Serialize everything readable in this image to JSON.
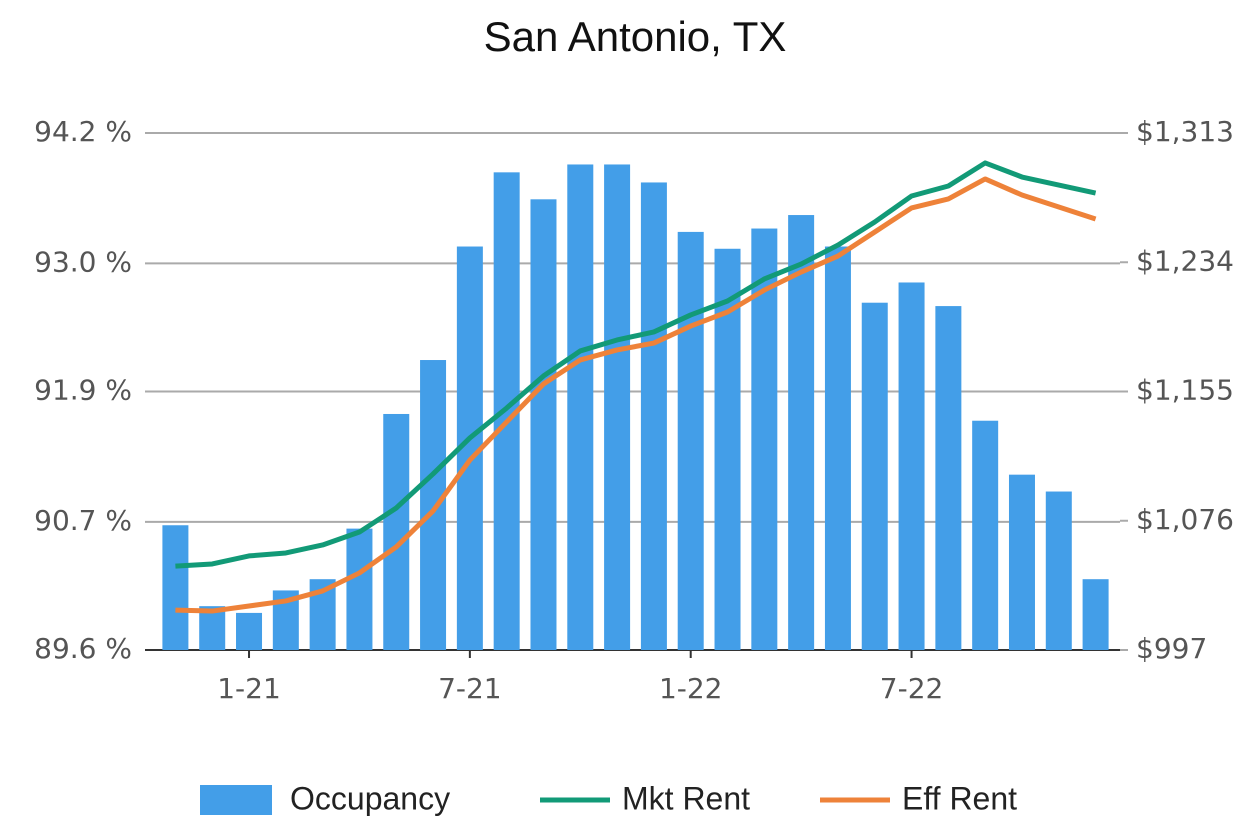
{
  "chart_data": {
    "type": "bar-line",
    "title": "San Antonio, TX",
    "categories": [
      null,
      null,
      "1-21",
      null,
      null,
      null,
      null,
      null,
      "7-21",
      null,
      null,
      null,
      null,
      null,
      "1-22",
      null,
      null,
      null,
      null,
      null,
      "7-22",
      null,
      null,
      null,
      null,
      null
    ],
    "series": [
      {
        "name": "Occupancy",
        "type": "bar",
        "color": "#439ee8",
        "axis": "y",
        "values": [
          90.71,
          89.99,
          89.93,
          90.13,
          90.23,
          90.68,
          91.7,
          92.18,
          93.19,
          93.85,
          93.61,
          93.92,
          93.92,
          93.76,
          93.32,
          93.17,
          93.35,
          93.47,
          93.19,
          92.69,
          92.87,
          92.66,
          91.64,
          91.16,
          91.01,
          90.23
        ]
      },
      {
        "name": "Mkt Rent",
        "type": "line",
        "color": "#129a77",
        "axis": "y2",
        "values": [
          1048.3,
          1049.6,
          1054.5,
          1056.3,
          1061.2,
          1069.1,
          1083.8,
          1104.6,
          1126.6,
          1144.9,
          1164.5,
          1179.8,
          1186.5,
          1191.4,
          1201.8,
          1210.3,
          1223.8,
          1232.9,
          1244.5,
          1258.6,
          1274.5,
          1280.6,
          1294.7,
          1286.1,
          1281.2,
          1276.3
        ]
      },
      {
        "name": "Eff Rent",
        "type": "line",
        "color": "#ee8239",
        "axis": "y2",
        "values": [
          1021.4,
          1020.8,
          1023.9,
          1027.0,
          1033.1,
          1044.1,
          1060.0,
          1082.0,
          1113.1,
          1136.4,
          1159.6,
          1174.3,
          1180.4,
          1184.6,
          1195.0,
          1203.6,
          1217.0,
          1228.0,
          1237.8,
          1252.5,
          1267.2,
          1272.7,
          1284.9,
          1275.1,
          1267.8,
          1260.4
        ]
      }
    ],
    "ylim": [
      89.6,
      94.2
    ],
    "yticks": [
      {
        "value": 89.6,
        "label": "89.6 %"
      },
      {
        "value": 90.74,
        "label": "90.7 %"
      },
      {
        "value": 91.9,
        "label": "91.9 %"
      },
      {
        "value": 93.04,
        "label": "93.0 %"
      },
      {
        "value": 94.2,
        "label": "94.2 %"
      }
    ],
    "y2lim": [
      997,
      1313
    ],
    "y2ticks": [
      {
        "value": 997,
        "label": "$997"
      },
      {
        "value": 1076,
        "label": "$1,076"
      },
      {
        "value": 1155,
        "label": "$1,155"
      },
      {
        "value": 1234,
        "label": "$1,234"
      },
      {
        "value": 1313,
        "label": "$1,313"
      }
    ],
    "grid": true,
    "legend": "bottom"
  }
}
